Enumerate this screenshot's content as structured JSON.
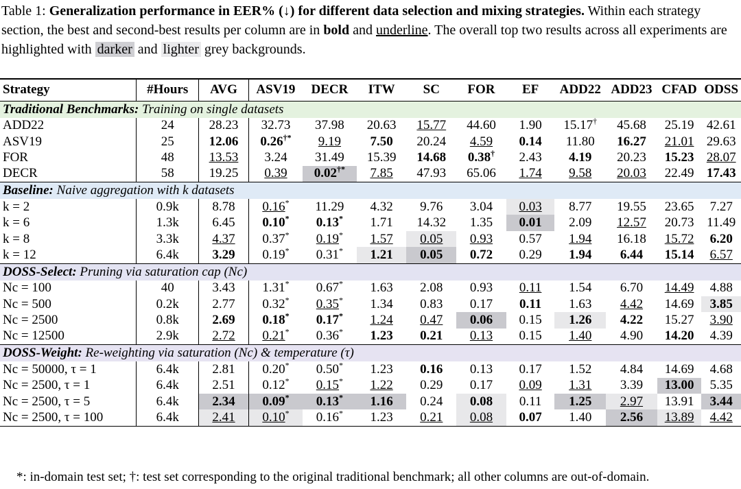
{
  "caption": {
    "prefix": "Table 1: ",
    "title": "Generalization performance in EER% (↓) for different data selection and mixing strategies.",
    "text1": " Within each strategy section, the best and second-best results per column are in ",
    "bold_word": "bold",
    "and1": " and ",
    "underline_word": "underline",
    "text2": ". The overall top two results across all experiments are highlighted with ",
    "darker_word": "darker",
    "and2": " and ",
    "lighter_word": "lighter",
    "text3": " grey backgrounds."
  },
  "header": [
    "Strategy",
    "#Hours",
    "AVG",
    "ASV19",
    "DECR",
    "ITW",
    "SC",
    "FOR",
    "EF",
    "ADD22",
    "ADD23",
    "CFAD",
    "ODSS"
  ],
  "sections": [
    {
      "title_bold": "Traditional Benchmarks:",
      "title_rest": " Training on single datasets",
      "tint": "green",
      "rows": [
        {
          "label": "ADD22",
          "cells": [
            {
              "v": "24"
            },
            {
              "v": "28.23"
            },
            {
              "v": "32.73"
            },
            {
              "v": "37.98"
            },
            {
              "v": "20.63"
            },
            {
              "v": "15.77",
              "u": 1
            },
            {
              "v": "44.60"
            },
            {
              "v": "1.90"
            },
            {
              "v": "15.17",
              "sup": "†"
            },
            {
              "v": "45.68"
            },
            {
              "v": "25.19"
            },
            {
              "v": "42.61"
            }
          ]
        },
        {
          "label": "ASV19",
          "cells": [
            {
              "v": "25"
            },
            {
              "v": "12.06",
              "b": 1
            },
            {
              "v": "0.26",
              "sup": "†*",
              "b": 1
            },
            {
              "v": "9.19",
              "u": 1
            },
            {
              "v": "7.50",
              "b": 1
            },
            {
              "v": "20.24"
            },
            {
              "v": "4.59",
              "u": 1
            },
            {
              "v": "0.14",
              "b": 1
            },
            {
              "v": "11.80"
            },
            {
              "v": "16.27",
              "b": 1
            },
            {
              "v": "21.01",
              "u": 1
            },
            {
              "v": "29.63"
            }
          ]
        },
        {
          "label": "FOR",
          "cells": [
            {
              "v": "48"
            },
            {
              "v": "13.53",
              "u": 1
            },
            {
              "v": "3.24"
            },
            {
              "v": "31.49"
            },
            {
              "v": "15.39"
            },
            {
              "v": "14.68",
              "b": 1
            },
            {
              "v": "0.38",
              "sup": "†",
              "b": 1
            },
            {
              "v": "2.43"
            },
            {
              "v": "4.19",
              "b": 1
            },
            {
              "v": "20.23"
            },
            {
              "v": "15.23",
              "b": 1
            },
            {
              "v": "28.07",
              "u": 1
            }
          ]
        },
        {
          "label": "DECR",
          "cells": [
            {
              "v": "58"
            },
            {
              "v": "19.25"
            },
            {
              "v": "0.39",
              "u": 1
            },
            {
              "v": "0.02",
              "sup": "†*",
              "b": 1,
              "bg": "dark"
            },
            {
              "v": "7.85",
              "u": 1
            },
            {
              "v": "47.93"
            },
            {
              "v": "65.06"
            },
            {
              "v": "1.74",
              "u": 1
            },
            {
              "v": "9.58",
              "u": 1
            },
            {
              "v": "20.03",
              "u": 1
            },
            {
              "v": "22.49"
            },
            {
              "v": "17.43",
              "b": 1
            }
          ]
        }
      ]
    },
    {
      "title_bold": "Baseline:",
      "title_rest": " Naive aggregation with k datasets",
      "tint": "blue",
      "rows": [
        {
          "label": "k = 2",
          "cells": [
            {
              "v": "0.9k"
            },
            {
              "v": "8.78"
            },
            {
              "v": "0.16",
              "sup": "*",
              "u": 1
            },
            {
              "v": "11.29"
            },
            {
              "v": "4.32"
            },
            {
              "v": "9.76"
            },
            {
              "v": "3.04"
            },
            {
              "v": "0.03",
              "u": 1,
              "bg": "light"
            },
            {
              "v": "8.77"
            },
            {
              "v": "19.55"
            },
            {
              "v": "23.65"
            },
            {
              "v": "7.27"
            }
          ]
        },
        {
          "label": "k = 6",
          "cells": [
            {
              "v": "1.3k"
            },
            {
              "v": "6.45"
            },
            {
              "v": "0.10",
              "sup": "*",
              "b": 1
            },
            {
              "v": "0.13",
              "sup": "*",
              "b": 1
            },
            {
              "v": "1.71"
            },
            {
              "v": "14.32"
            },
            {
              "v": "1.35"
            },
            {
              "v": "0.01",
              "b": 1,
              "bg": "dark"
            },
            {
              "v": "2.09"
            },
            {
              "v": "12.57",
              "u": 1
            },
            {
              "v": "20.73"
            },
            {
              "v": "11.49"
            }
          ]
        },
        {
          "label": "k = 8",
          "cells": [
            {
              "v": "3.3k"
            },
            {
              "v": "4.37",
              "u": 1
            },
            {
              "v": "0.37",
              "sup": "*"
            },
            {
              "v": "0.19",
              "sup": "*",
              "u": 1
            },
            {
              "v": "1.57",
              "u": 1
            },
            {
              "v": "0.05",
              "u": 1,
              "bg": "light"
            },
            {
              "v": "0.93",
              "u": 1
            },
            {
              "v": "0.57"
            },
            {
              "v": "1.94",
              "u": 1
            },
            {
              "v": "16.18"
            },
            {
              "v": "15.72",
              "u": 1
            },
            {
              "v": "6.20",
              "b": 1
            }
          ]
        },
        {
          "label": "k = 12",
          "cells": [
            {
              "v": "6.4k"
            },
            {
              "v": "3.29",
              "b": 1
            },
            {
              "v": "0.19",
              "sup": "*"
            },
            {
              "v": "0.31",
              "sup": "*"
            },
            {
              "v": "1.21",
              "b": 1,
              "bg": "light"
            },
            {
              "v": "0.05",
              "b": 1,
              "bg": "dark"
            },
            {
              "v": "0.72",
              "b": 1
            },
            {
              "v": "0.29"
            },
            {
              "v": "1.94",
              "b": 1
            },
            {
              "v": "6.44",
              "b": 1
            },
            {
              "v": "15.14",
              "b": 1
            },
            {
              "v": "6.57",
              "u": 1
            }
          ]
        }
      ]
    },
    {
      "title_bold": "DOSS-Select:",
      "title_rest": " Pruning via saturation cap (Nc)",
      "tint": "lav",
      "rows": [
        {
          "label": "Nc = 100",
          "cells": [
            {
              "v": "40"
            },
            {
              "v": "3.43"
            },
            {
              "v": "1.31",
              "sup": "*"
            },
            {
              "v": "0.67",
              "sup": "*"
            },
            {
              "v": "1.63"
            },
            {
              "v": "2.08"
            },
            {
              "v": "0.93"
            },
            {
              "v": "0.11",
              "u": 1
            },
            {
              "v": "1.54"
            },
            {
              "v": "6.70"
            },
            {
              "v": "14.49",
              "u": 1
            },
            {
              "v": "4.88"
            }
          ]
        },
        {
          "label": "Nc = 500",
          "cells": [
            {
              "v": "0.2k"
            },
            {
              "v": "2.77"
            },
            {
              "v": "0.32",
              "sup": "*"
            },
            {
              "v": "0.35",
              "sup": "*",
              "u": 1
            },
            {
              "v": "1.34"
            },
            {
              "v": "0.83"
            },
            {
              "v": "0.17"
            },
            {
              "v": "0.11",
              "b": 1
            },
            {
              "v": "1.63"
            },
            {
              "v": "4.42",
              "u": 1
            },
            {
              "v": "14.69"
            },
            {
              "v": "3.85",
              "b": 1,
              "bg": "light"
            }
          ]
        },
        {
          "label": "Nc = 2500",
          "cells": [
            {
              "v": "0.8k"
            },
            {
              "v": "2.69",
              "b": 1
            },
            {
              "v": "0.18",
              "sup": "*",
              "b": 1
            },
            {
              "v": "0.17",
              "sup": "*",
              "b": 1
            },
            {
              "v": "1.24",
              "u": 1
            },
            {
              "v": "0.47",
              "u": 1
            },
            {
              "v": "0.06",
              "b": 1,
              "bg": "dark"
            },
            {
              "v": "0.15"
            },
            {
              "v": "1.26",
              "b": 1,
              "bg": "light"
            },
            {
              "v": "4.22",
              "b": 1
            },
            {
              "v": "15.27"
            },
            {
              "v": "3.90",
              "u": 1
            }
          ]
        },
        {
          "label": "Nc = 12500",
          "cells": [
            {
              "v": "2.9k"
            },
            {
              "v": "2.72",
              "u": 1
            },
            {
              "v": "0.21",
              "sup": "*",
              "u": 1
            },
            {
              "v": "0.36",
              "sup": "*"
            },
            {
              "v": "1.23",
              "b": 1
            },
            {
              "v": "0.21",
              "b": 1
            },
            {
              "v": "0.13",
              "u": 1
            },
            {
              "v": "0.15"
            },
            {
              "v": "1.40",
              "u": 1
            },
            {
              "v": "4.90"
            },
            {
              "v": "14.20",
              "b": 1
            },
            {
              "v": "4.39"
            }
          ]
        }
      ]
    },
    {
      "title_bold": "DOSS-Weight:",
      "title_rest": " Re-weighting via saturation (Nc) & temperature (τ)",
      "tint": "purple",
      "rows": [
        {
          "label": "Nc = 50000, τ = 1",
          "cells": [
            {
              "v": "6.4k"
            },
            {
              "v": "2.81"
            },
            {
              "v": "0.20",
              "sup": "*"
            },
            {
              "v": "0.50",
              "sup": "*"
            },
            {
              "v": "1.23"
            },
            {
              "v": "0.16",
              "b": 1
            },
            {
              "v": "0.13"
            },
            {
              "v": "0.17"
            },
            {
              "v": "1.52"
            },
            {
              "v": "4.84"
            },
            {
              "v": "14.69"
            },
            {
              "v": "4.68"
            }
          ]
        },
        {
          "label": "Nc = 2500, τ = 1",
          "cells": [
            {
              "v": "6.4k"
            },
            {
              "v": "2.51"
            },
            {
              "v": "0.12",
              "sup": "*"
            },
            {
              "v": "0.15",
              "sup": "*",
              "u": 1
            },
            {
              "v": "1.22",
              "u": 1
            },
            {
              "v": "0.29"
            },
            {
              "v": "0.17"
            },
            {
              "v": "0.09",
              "u": 1
            },
            {
              "v": "1.31",
              "u": 1
            },
            {
              "v": "3.39"
            },
            {
              "v": "13.00",
              "b": 1,
              "bg": "dark"
            },
            {
              "v": "5.35"
            }
          ]
        },
        {
          "label": "Nc = 2500, τ = 5",
          "cells": [
            {
              "v": "6.4k"
            },
            {
              "v": "2.34",
              "b": 1,
              "bg": "dark"
            },
            {
              "v": "0.09",
              "sup": "*",
              "b": 1,
              "bg": "dark"
            },
            {
              "v": "0.13",
              "sup": "*",
              "b": 1,
              "bg": "dark"
            },
            {
              "v": "1.16",
              "b": 1,
              "bg": "dark"
            },
            {
              "v": "0.24"
            },
            {
              "v": "0.08",
              "b": 1,
              "bg": "light"
            },
            {
              "v": "0.11"
            },
            {
              "v": "1.25",
              "b": 1,
              "bg": "dark"
            },
            {
              "v": "2.97",
              "u": 1,
              "bg": "light"
            },
            {
              "v": "13.91"
            },
            {
              "v": "3.44",
              "b": 1,
              "bg": "dark"
            }
          ]
        },
        {
          "label": "Nc = 2500, τ = 100",
          "cells": [
            {
              "v": "6.4k"
            },
            {
              "v": "2.41",
              "u": 1,
              "bg": "light"
            },
            {
              "v": "0.10",
              "sup": "*",
              "u": 1,
              "bg": "light"
            },
            {
              "v": "0.16",
              "sup": "*"
            },
            {
              "v": "1.23"
            },
            {
              "v": "0.21",
              "u": 1
            },
            {
              "v": "0.08",
              "u": 1,
              "bg": "light"
            },
            {
              "v": "0.07",
              "b": 1
            },
            {
              "v": "1.40"
            },
            {
              "v": "2.56",
              "b": 1,
              "bg": "dark"
            },
            {
              "v": "13.89",
              "u": 1,
              "bg": "light"
            },
            {
              "v": "4.42",
              "u": 1
            }
          ]
        }
      ]
    }
  ],
  "footnote": "*: in-domain test set; †: test set corresponding to the original traditional benchmark; all other columns are out-of-domain.",
  "colors": {
    "dark_bg": "#c9c9ce",
    "light_bg": "#e8e8ea",
    "green_tint": "#e4f2df",
    "blue_tint": "#dfeaf6",
    "lav_tint": "#e3e3f2",
    "purple_tint": "#e6e3f2"
  }
}
